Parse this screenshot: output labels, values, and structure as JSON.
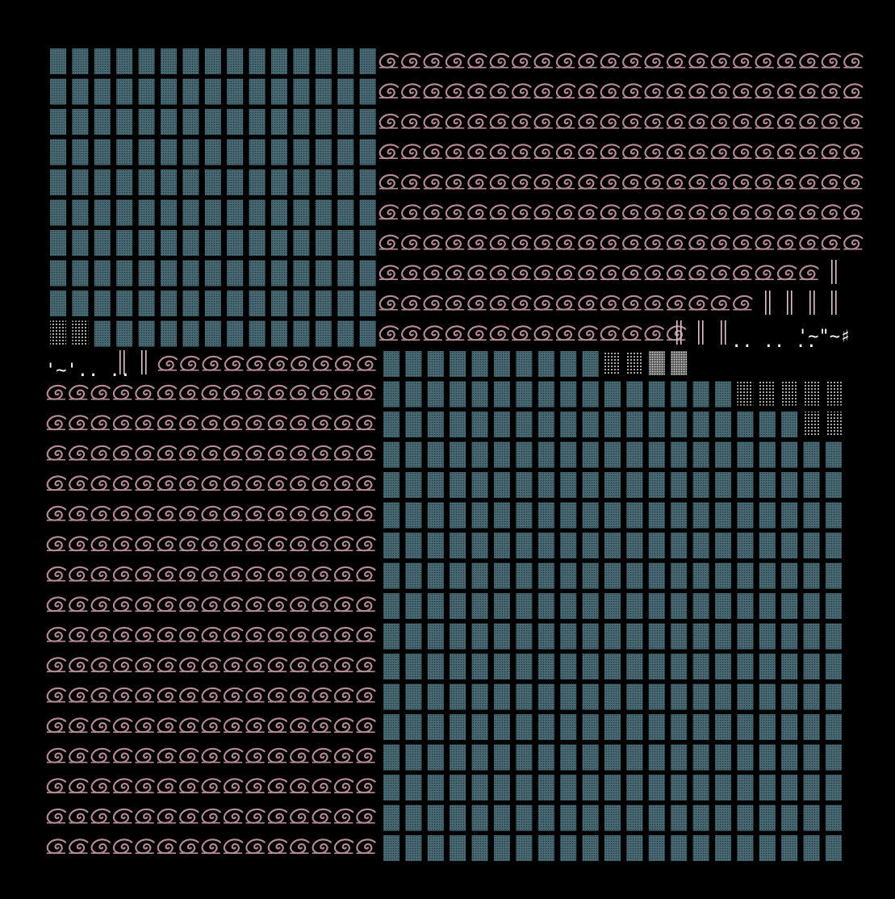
{
  "artwork": {
    "background": "#000000",
    "colors": {
      "block": "#4a6b74",
      "block_dot": "#1f3a44",
      "glyph": "#b48c98",
      "glyph_light": "#dcc3cf",
      "white": "#ffffff",
      "pale": "#e8dce3"
    },
    "text_fragments": {
      "row_a_left": "'~'.. ..",
      "row_b_right_dots": ".. .. ..",
      "row_b_right_tail": "'~\"~♯",
      "glyph_name": "curl-eye glyph ƈ"
    }
  }
}
